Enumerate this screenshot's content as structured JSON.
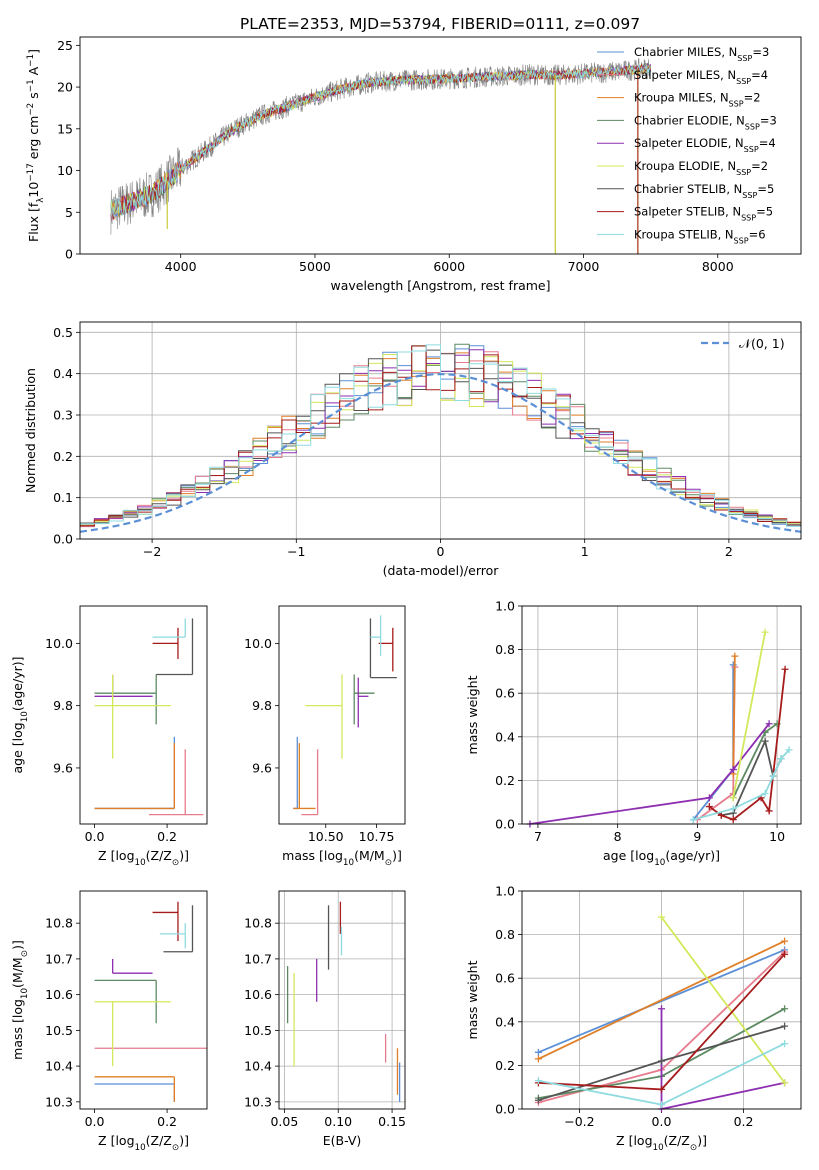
{
  "figure_title": "PLATE=2353, MJD=53794, FIBERID=0111, z=0.097",
  "models": [
    {
      "name": "Chabrier MILES, N",
      "sub": "SSP",
      "tail": "=3",
      "color": "#5b8fd6"
    },
    {
      "name": "Salpeter MILES, N",
      "sub": "SSP",
      "tail": "=4",
      "color": "#e77c8d"
    },
    {
      "name": "Kroupa MILES, N",
      "sub": "SSP",
      "tail": "=2",
      "color": "#e07f27"
    },
    {
      "name": "Chabrier ELODIE, N",
      "sub": "SSP",
      "tail": "=3",
      "color": "#5d8a62"
    },
    {
      "name": "Salpeter ELODIE, N",
      "sub": "SSP",
      "tail": "=4",
      "color": "#8d2fb0"
    },
    {
      "name": "Kroupa ELODIE, N",
      "sub": "SSP",
      "tail": "=2",
      "color": "#d4e85c"
    },
    {
      "name": "Chabrier STELIB, N",
      "sub": "SSP",
      "tail": "=5",
      "color": "#555555"
    },
    {
      "name": "Salpeter STELIB, N",
      "sub": "SSP",
      "tail": "=5",
      "color": "#a61b1b"
    },
    {
      "name": "Kroupa STELIB, N",
      "sub": "SSP",
      "tail": "=6",
      "color": "#8edbe0"
    }
  ],
  "chart_data": [
    {
      "id": "spectrum",
      "type": "line",
      "xlabel": "wavelength [Angstrom, rest frame]",
      "ylabel_parts": [
        "Flux [f",
        "λ",
        "10",
        "−17",
        " erg cm",
        "−2",
        " s",
        "−1",
        " A",
        "−1",
        "]"
      ],
      "xlim": [
        3250,
        8620
      ],
      "ylim": [
        0,
        26
      ],
      "xticks": [
        4000,
        5000,
        6000,
        7000,
        8000
      ],
      "yticks": [
        0,
        5,
        10,
        15,
        20,
        25
      ],
      "data_color": "#808080",
      "flux_x": [
        3480,
        3600,
        3800,
        4000,
        4200,
        4400,
        4600,
        4800,
        5000,
        5200,
        5400,
        5600,
        5800,
        6000,
        6200,
        6400,
        6600,
        6800,
        7000,
        7200,
        7400,
        7500
      ],
      "flux_y": [
        5.2,
        6.0,
        7.3,
        10.2,
        12.6,
        15.0,
        16.6,
        17.7,
        18.8,
        19.8,
        20.5,
        20.8,
        20.9,
        21.0,
        21.2,
        21.3,
        21.5,
        21.4,
        21.6,
        21.8,
        22.1,
        22.3
      ],
      "deep_dips": [
        {
          "x": 3900,
          "y": 3.0
        },
        {
          "x": 6790,
          "y": 0
        },
        {
          "x": 7405,
          "y": 0
        }
      ],
      "grid": false,
      "legend_position": "upper-right"
    },
    {
      "id": "residuals",
      "type": "histogram",
      "xlabel": "(data-model)/error",
      "ylabel": "Normed distribution",
      "xlim": [
        -2.5,
        2.5
      ],
      "ylim": [
        0,
        0.525
      ],
      "xticks": [
        -2,
        -1,
        0,
        1,
        2
      ],
      "yticks": [
        0.0,
        0.1,
        0.2,
        0.3,
        0.4,
        0.5
      ],
      "bin_width": 0.1,
      "grid": true,
      "reference_curve": {
        "label": "𝒩(0, 1)",
        "mean": 0,
        "sigma": 1,
        "color": "#5b8fd6",
        "style": "dashed"
      },
      "legend_position": "upper-right"
    },
    {
      "id": "age_vs_Z",
      "type": "errorbar",
      "xlabel_parts": [
        "Z [log",
        "10",
        "(Z/Z",
        "⊙",
        ")]"
      ],
      "ylabel_parts": [
        "age  [log",
        "10",
        "(age/yr)]"
      ],
      "xlim": [
        -0.04,
        0.31
      ],
      "ylim": [
        9.42,
        10.12
      ],
      "xticks": [
        0.0,
        0.2
      ],
      "yticks": [
        9.6,
        9.8,
        10.0
      ],
      "grid": false,
      "points": [
        {
          "model": 0,
          "x": 0.22,
          "xerr": [
            0.22,
            0.0
          ],
          "y": 9.47,
          "yerr": [
            0.0,
            0.23
          ]
        },
        {
          "model": 1,
          "x": 0.25,
          "xerr": [
            0.1,
            0.05
          ],
          "y": 9.45,
          "yerr": [
            0.0,
            0.21
          ]
        },
        {
          "model": 2,
          "x": 0.22,
          "xerr": [
            0.22,
            0.0
          ],
          "y": 9.47,
          "yerr": [
            0.0,
            0.21
          ]
        },
        {
          "model": 3,
          "x": 0.17,
          "xerr": [
            0.17,
            0.0
          ],
          "y": 9.84,
          "yerr": [
            0.1,
            0.06
          ]
        },
        {
          "model": 4,
          "x": 0.05,
          "xerr": [
            0.05,
            0.11
          ],
          "y": 9.83,
          "yerr": [
            0.0,
            0.07
          ]
        },
        {
          "model": 5,
          "x": 0.05,
          "xerr": [
            0.05,
            0.16
          ],
          "y": 9.8,
          "yerr": [
            0.17,
            0.1
          ]
        },
        {
          "model": 6,
          "x": 0.27,
          "xerr": [
            0.1,
            0.0
          ],
          "y": 9.9,
          "yerr": [
            0.0,
            0.18
          ]
        },
        {
          "model": 7,
          "x": 0.23,
          "xerr": [
            0.07,
            0.0
          ],
          "y": 10.0,
          "yerr": [
            0.05,
            0.05
          ]
        },
        {
          "model": 8,
          "x": 0.25,
          "xerr": [
            0.09,
            0.0
          ],
          "y": 10.02,
          "yerr": [
            0.0,
            0.06
          ]
        }
      ]
    },
    {
      "id": "age_vs_mass",
      "type": "errorbar",
      "xlabel_parts": [
        "mass [log",
        "10",
        "(M/M",
        "⊙",
        ")]"
      ],
      "ylabel_parts": [],
      "xlim": [
        10.27,
        10.89
      ],
      "ylim": [
        9.42,
        10.12
      ],
      "xticks": [
        10.5,
        10.75
      ],
      "xtick_labels": [
        "10.50",
        "10.75"
      ],
      "yticks": [
        9.6,
        9.8,
        10.0
      ],
      "grid": false,
      "points": [
        {
          "model": 0,
          "x": 10.36,
          "xerr": [
            0.02,
            0.0
          ],
          "y": 9.47,
          "yerr": [
            0.0,
            0.23
          ]
        },
        {
          "model": 1,
          "x": 10.46,
          "xerr": [
            0.08,
            0.0
          ],
          "y": 9.45,
          "yerr": [
            0.0,
            0.21
          ]
        },
        {
          "model": 2,
          "x": 10.37,
          "xerr": [
            0.03,
            0.08
          ],
          "y": 9.47,
          "yerr": [
            0.0,
            0.21
          ]
        },
        {
          "model": 3,
          "x": 10.64,
          "xerr": [
            0.0,
            0.1
          ],
          "y": 9.84,
          "yerr": [
            0.1,
            0.06
          ]
        },
        {
          "model": 4,
          "x": 10.66,
          "xerr": [
            0.0,
            0.05
          ],
          "y": 9.83,
          "yerr": [
            0.1,
            0.06
          ]
        },
        {
          "model": 5,
          "x": 10.58,
          "xerr": [
            0.18,
            0.0
          ],
          "y": 9.8,
          "yerr": [
            0.17,
            0.1
          ]
        },
        {
          "model": 6,
          "x": 10.72,
          "xerr": [
            0.0,
            0.13
          ],
          "y": 9.89,
          "yerr": [
            0.0,
            0.19
          ]
        },
        {
          "model": 7,
          "x": 10.83,
          "xerr": [
            0.07,
            0.0
          ],
          "y": 10.0,
          "yerr": [
            0.09,
            0.05
          ]
        },
        {
          "model": 8,
          "x": 10.77,
          "xerr": [
            0.05,
            0.0
          ],
          "y": 10.02,
          "yerr": [
            0.06,
            0.07
          ]
        }
      ]
    },
    {
      "id": "massweight_vs_age",
      "type": "line",
      "xlabel_parts": [
        "age  [log",
        "10",
        "(age/yr)]"
      ],
      "ylabel": "mass weight",
      "xlim": [
        6.8,
        10.3
      ],
      "ylim": [
        0,
        1.0
      ],
      "xticks": [
        7,
        8,
        9,
        10
      ],
      "yticks": [
        0.0,
        0.2,
        0.4,
        0.6,
        0.8,
        1.0
      ],
      "grid": true,
      "series": [
        {
          "model": 0,
          "x": [
            8.95,
            9.45,
            9.45
          ],
          "y": [
            0.02,
            0.25,
            0.73
          ]
        },
        {
          "model": 1,
          "x": [
            9.0,
            9.45,
            9.47
          ],
          "y": [
            0.02,
            0.14,
            0.72
          ]
        },
        {
          "model": 2,
          "x": [
            9.45,
            9.47
          ],
          "y": [
            0.23,
            0.77
          ]
        },
        {
          "model": 3,
          "x": [
            9.45,
            9.85,
            10.0
          ],
          "y": [
            0.12,
            0.42,
            0.46
          ]
        },
        {
          "model": 4,
          "x": [
            6.9,
            9.15,
            9.45,
            9.9
          ],
          "y": [
            0.0,
            0.12,
            0.25,
            0.46
          ]
        },
        {
          "model": 5,
          "x": [
            9.45,
            9.85
          ],
          "y": [
            0.12,
            0.88
          ]
        },
        {
          "model": 6,
          "x": [
            9.3,
            9.45,
            9.85,
            9.95,
            10.05
          ],
          "y": [
            0.04,
            0.05,
            0.38,
            0.22,
            0.3
          ]
        },
        {
          "model": 7,
          "x": [
            9.15,
            9.3,
            9.45,
            9.8,
            9.9,
            10.1
          ],
          "y": [
            0.08,
            0.04,
            0.02,
            0.12,
            0.06,
            0.71
          ]
        },
        {
          "model": 8,
          "x": [
            8.95,
            9.45,
            9.85,
            9.95,
            10.05,
            10.15
          ],
          "y": [
            0.02,
            0.07,
            0.14,
            0.22,
            0.3,
            0.34
          ]
        }
      ]
    },
    {
      "id": "mass_vs_Z",
      "type": "errorbar",
      "xlabel_parts": [
        "Z [log",
        "10",
        "(Z/Z",
        "⊙",
        ")]"
      ],
      "ylabel_parts": [
        "mass [log",
        "10",
        "(M/M",
        "⊙",
        ")]"
      ],
      "xlim": [
        -0.04,
        0.31
      ],
      "ylim": [
        10.28,
        10.89
      ],
      "xticks": [
        0.0,
        0.2
      ],
      "yticks": [
        10.3,
        10.4,
        10.5,
        10.6,
        10.7,
        10.8
      ],
      "grid": false,
      "points": [
        {
          "model": 0,
          "x": 0.22,
          "xerr": [
            0.22,
            0.0
          ],
          "y": 10.35,
          "yerr": [
            0.05,
            0.0
          ]
        },
        {
          "model": 1,
          "x": 0.25,
          "xerr": [
            0.25,
            0.06
          ],
          "y": 10.45,
          "yerr": [
            0.0,
            0.0
          ]
        },
        {
          "model": 2,
          "x": 0.22,
          "xerr": [
            0.22,
            0.0
          ],
          "y": 10.37,
          "yerr": [
            0.07,
            0.0
          ]
        },
        {
          "model": 3,
          "x": 0.17,
          "xerr": [
            0.17,
            0.0
          ],
          "y": 10.64,
          "yerr": [
            0.12,
            0.0
          ]
        },
        {
          "model": 4,
          "x": 0.05,
          "xerr": [
            0.0,
            0.11
          ],
          "y": 10.66,
          "yerr": [
            0.0,
            0.04
          ]
        },
        {
          "model": 5,
          "x": 0.05,
          "xerr": [
            0.05,
            0.16
          ],
          "y": 10.58,
          "yerr": [
            0.18,
            0.0
          ]
        },
        {
          "model": 6,
          "x": 0.27,
          "xerr": [
            0.08,
            0.0
          ],
          "y": 10.72,
          "yerr": [
            0.0,
            0.13
          ]
        },
        {
          "model": 7,
          "x": 0.23,
          "xerr": [
            0.07,
            0.0
          ],
          "y": 10.83,
          "yerr": [
            0.08,
            0.03
          ]
        },
        {
          "model": 8,
          "x": 0.25,
          "xerr": [
            0.07,
            0.0
          ],
          "y": 10.77,
          "yerr": [
            0.04,
            0.03
          ]
        }
      ]
    },
    {
      "id": "mass_vs_EBV",
      "type": "errorbar",
      "xlabel": "E(B-V)",
      "ylabel_parts": [],
      "xlim": [
        0.045,
        0.162
      ],
      "ylim": [
        10.28,
        10.89
      ],
      "xticks": [
        0.05,
        0.1,
        0.15
      ],
      "xtick_labels": [
        "0.05",
        "0.10",
        "0.15"
      ],
      "yticks": [
        10.3,
        10.4,
        10.5,
        10.6,
        10.7,
        10.8
      ],
      "grid": true,
      "points": [
        {
          "model": 0,
          "x": 0.157,
          "xerr": [
            0,
            0
          ],
          "y": 10.35,
          "yerr": [
            0.05,
            0.06
          ]
        },
        {
          "model": 1,
          "x": 0.144,
          "xerr": [
            0,
            0
          ],
          "y": 10.45,
          "yerr": [
            0.04,
            0.04
          ]
        },
        {
          "model": 2,
          "x": 0.155,
          "xerr": [
            0,
            0
          ],
          "y": 10.37,
          "yerr": [
            0.05,
            0.08
          ]
        },
        {
          "model": 3,
          "x": 0.053,
          "xerr": [
            0,
            0
          ],
          "y": 10.6,
          "yerr": [
            0.08,
            0.08
          ]
        },
        {
          "model": 4,
          "x": 0.08,
          "xerr": [
            0,
            0
          ],
          "y": 10.63,
          "yerr": [
            0.05,
            0.07
          ]
        },
        {
          "model": 5,
          "x": 0.059,
          "xerr": [
            0,
            0
          ],
          "y": 10.53,
          "yerr": [
            0.13,
            0.13
          ]
        },
        {
          "model": 6,
          "x": 0.091,
          "xerr": [
            0,
            0
          ],
          "y": 10.75,
          "yerr": [
            0.08,
            0.1
          ]
        },
        {
          "model": 7,
          "x": 0.102,
          "xerr": [
            0,
            0
          ],
          "y": 10.81,
          "yerr": [
            0.04,
            0.05
          ]
        },
        {
          "model": 8,
          "x": 0.103,
          "xerr": [
            0,
            0
          ],
          "y": 10.75,
          "yerr": [
            0.04,
            0.04
          ]
        }
      ]
    },
    {
      "id": "massweight_vs_Z",
      "type": "line",
      "xlabel_parts": [
        "Z [log",
        "10",
        "(Z/Z",
        "⊙",
        ")]"
      ],
      "ylabel": "mass weight",
      "xlim": [
        -0.34,
        0.34
      ],
      "ylim": [
        0,
        1.0
      ],
      "xticks": [
        -0.2,
        0.0,
        0.2
      ],
      "xtick_labels": [
        "−0.2",
        "0.0",
        "0.2"
      ],
      "yticks": [
        0.0,
        0.2,
        0.4,
        0.6,
        0.8,
        1.0
      ],
      "grid": true,
      "series": [
        {
          "model": 0,
          "x": [
            -0.3,
            0.3
          ],
          "y": [
            0.26,
            0.73
          ]
        },
        {
          "model": 1,
          "x": [
            -0.3,
            0.0,
            0.3
          ],
          "y": [
            0.03,
            0.18,
            0.72
          ]
        },
        {
          "model": 2,
          "x": [
            -0.3,
            0.3
          ],
          "y": [
            0.23,
            0.77
          ]
        },
        {
          "model": 3,
          "x": [
            -0.3,
            0.0,
            0.3
          ],
          "y": [
            0.05,
            0.15,
            0.46
          ]
        },
        {
          "model": 4,
          "x": [
            0.0,
            0.0,
            0.3
          ],
          "y": [
            0.46,
            0.0,
            0.12
          ]
        },
        {
          "model": 5,
          "x": [
            0.0,
            0.3
          ],
          "y": [
            0.88,
            0.12
          ]
        },
        {
          "model": 6,
          "x": [
            -0.3,
            0.0,
            0.3
          ],
          "y": [
            0.04,
            0.22,
            0.38
          ]
        },
        {
          "model": 7,
          "x": [
            -0.3,
            0.0,
            0.3
          ],
          "y": [
            0.12,
            0.09,
            0.71
          ]
        },
        {
          "model": 8,
          "x": [
            -0.3,
            0.0,
            0.3
          ],
          "y": [
            0.13,
            0.02,
            0.3
          ]
        }
      ]
    }
  ]
}
